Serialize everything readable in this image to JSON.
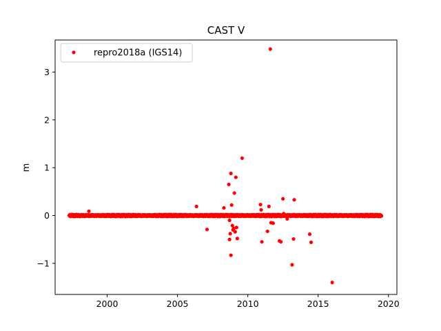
{
  "chart_data": {
    "type": "scatter",
    "title": "CAST V",
    "xlabel": "",
    "ylabel": "m",
    "xlim": [
      1996.3,
      2020.6
    ],
    "ylim": [
      -1.65,
      3.67
    ],
    "xticks": [
      2000,
      2005,
      2010,
      2015,
      2020
    ],
    "yticks": [
      -1,
      0,
      1,
      2,
      3
    ],
    "grid": false,
    "legend": {
      "placement": "top-left"
    },
    "series": [
      {
        "name": "repro2018a (IGS14)",
        "color": "#ff0000",
        "marker": "circle",
        "baseline": {
          "x_start": 1997.3,
          "x_end": 2019.5,
          "y": 0.0
        },
        "outliers": {
          "x": [
            1998.7,
            2006.35,
            2007.1,
            2008.3,
            2008.65,
            2008.7,
            2008.75,
            2008.8,
            2008.85,
            2008.9,
            2008.95,
            2009.05,
            2009.1,
            2009.15,
            2009.2,
            2009.25,
            2009.6,
            2008.8,
            2008.7,
            2009.0,
            2010.9,
            2010.95,
            2011.0,
            2011.4,
            2011.5,
            2011.6,
            2011.65,
            2011.8,
            2012.25,
            2012.35,
            2012.5,
            2012.55,
            2012.8,
            2013.15,
            2013.25,
            2013.3,
            2014.4,
            2014.5,
            2016.0
          ],
          "y": [
            0.09,
            0.19,
            -0.29,
            0.16,
            0.65,
            -0.5,
            -0.38,
            0.88,
            0.22,
            -0.21,
            -0.3,
            0.47,
            -0.34,
            0.8,
            -0.25,
            -0.48,
            1.2,
            -0.83,
            -0.1,
            -0.27,
            0.23,
            0.12,
            -0.55,
            -0.33,
            0.19,
            3.48,
            -0.15,
            -0.16,
            -0.53,
            -0.55,
            0.35,
            0.04,
            -0.07,
            -1.03,
            -0.49,
            0.33,
            -0.39,
            -0.56,
            -1.4
          ]
        }
      }
    ]
  }
}
